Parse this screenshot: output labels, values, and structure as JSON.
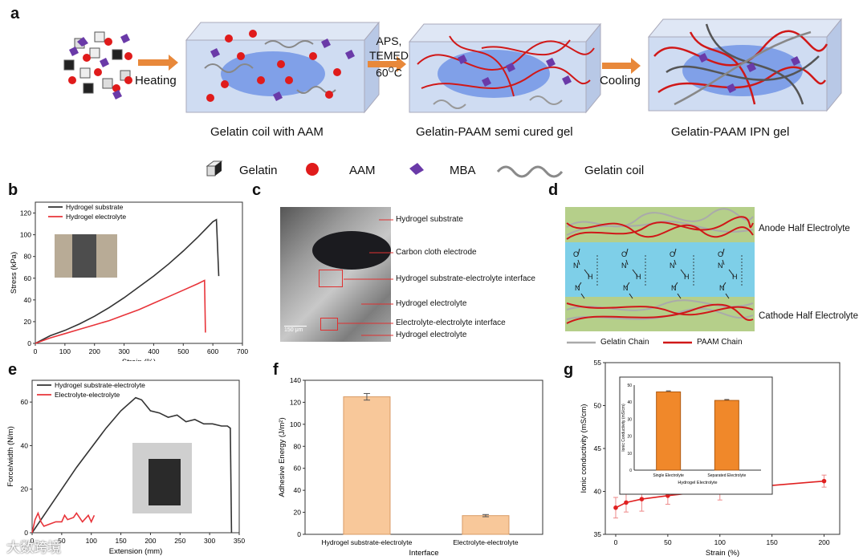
{
  "panel_a": {
    "letter": "a",
    "step1": "Heating",
    "step2_line1": "APS,",
    "step2_line2": "TEMED",
    "step2_line3": "60",
    "step2_sup": "O",
    "step2_unit": "C",
    "step3": "Cooling",
    "caption1": "Gelatin coil with AAM",
    "caption2": "Gelatin-PAAM semi cured gel",
    "caption3": "Gelatin-PAAM IPN gel",
    "legend": [
      "Gelatin",
      "AAM",
      "MBA",
      "Gelatin coil"
    ],
    "colors": {
      "arrow": "#e8883a",
      "aam": "#e01b1b",
      "mba": "#6a3aa8",
      "box": "#c9d6ee",
      "chain_red": "#d01818",
      "chain_gray": "#8a8a8a"
    }
  },
  "panel_c": {
    "letter": "c",
    "labels": [
      "Hydrogel substrate",
      "Carbon cloth electrode",
      "Hydrogel substrate-electrolyte interface",
      "Hydrogel electrolyte",
      "Electrolyte-electrolyte interface",
      "Hydrogel electrolyte"
    ],
    "scalebar": "150 μm"
  },
  "panel_d": {
    "letter": "d",
    "top_label": "Anode Half Electrolyte",
    "bottom_label": "Cathode Half Electrolyte",
    "legend": [
      "Gelatin Chain",
      "PAAM Chain"
    ],
    "colors": {
      "outer": "#b5cf8a",
      "middle": "#7ecfe8"
    }
  },
  "watermark": "大数跨境",
  "chart_data": [
    {
      "panel": "b",
      "type": "line",
      "title": "",
      "xlabel": "Strain (%)",
      "ylabel": "Stress (kPa)",
      "xlim": [
        0,
        700
      ],
      "ylim": [
        0,
        130
      ],
      "xticks": [
        "0",
        "100",
        "200",
        "300",
        "400",
        "500",
        "600",
        "700"
      ],
      "yticks": [
        "0",
        "20",
        "40",
        "60",
        "80",
        "100",
        "120"
      ],
      "series": [
        {
          "name": "Hydrogel substrate",
          "color": "#333333",
          "x": [
            0,
            50,
            100,
            150,
            200,
            250,
            300,
            350,
            400,
            450,
            500,
            550,
            600,
            612,
            620
          ],
          "y": [
            0,
            7,
            12,
            18,
            25,
            33,
            42,
            52,
            62,
            73,
            85,
            98,
            112,
            114,
            62
          ]
        },
        {
          "name": "Hydrogel electrolyte",
          "color": "#e8343a",
          "x": [
            0,
            50,
            100,
            150,
            200,
            250,
            300,
            350,
            400,
            450,
            500,
            550,
            572,
            575
          ],
          "y": [
            0,
            5,
            9,
            13,
            17,
            21,
            26,
            31,
            37,
            43,
            49,
            55,
            58,
            10
          ]
        }
      ]
    },
    {
      "panel": "e",
      "type": "line",
      "title": "",
      "xlabel": "Extension (mm)",
      "ylabel": "Force/width (N/m)",
      "xlim": [
        0,
        350
      ],
      "ylim": [
        0,
        70
      ],
      "xticks": [
        "0",
        "50",
        "100",
        "150",
        "200",
        "250",
        "300",
        "350"
      ],
      "yticks": [
        "0",
        "20",
        "40",
        "60"
      ],
      "series": [
        {
          "name": "Hydrogel substrate-electrolyte",
          "color": "#333333",
          "x": [
            0,
            25,
            50,
            75,
            100,
            125,
            150,
            175,
            185,
            200,
            215,
            230,
            245,
            260,
            275,
            290,
            305,
            320,
            330,
            335,
            337
          ],
          "y": [
            0,
            10,
            20,
            30,
            39,
            48,
            56,
            62,
            61,
            56,
            55,
            53,
            54,
            51,
            52,
            50,
            50,
            49,
            49,
            48,
            0
          ]
        },
        {
          "name": "Electrolyte-electrolyte",
          "color": "#e8343a",
          "x": [
            0,
            5,
            10,
            15,
            20,
            30,
            40,
            50,
            55,
            60,
            70,
            75,
            85,
            95,
            100,
            105
          ],
          "y": [
            0,
            6,
            9,
            5,
            3,
            4,
            5,
            5,
            8,
            6,
            7,
            9,
            5,
            8,
            5,
            8
          ]
        }
      ]
    },
    {
      "panel": "f",
      "type": "bar",
      "title": "",
      "xlabel": "Interface",
      "ylabel": "Adhesive Energy (J/m²)",
      "categories": [
        "Hydrogel substrate-electrolyte",
        "Electrolyte-electrolyte"
      ],
      "values": [
        125,
        17
      ],
      "errors": [
        3,
        1
      ],
      "ylim": [
        0,
        140
      ],
      "yticks": [
        "0",
        "20",
        "40",
        "60",
        "80",
        "100",
        "120",
        "140"
      ],
      "color": "#f8c89a"
    },
    {
      "panel": "g",
      "type": "line",
      "title": "",
      "xlabel": "Strain (%)",
      "ylabel": "Ionic conductivity (mS/cm)",
      "xlim": [
        -10,
        215
      ],
      "ylim": [
        35,
        55
      ],
      "xticks": [
        "0",
        "50",
        "100",
        "150",
        "200"
      ],
      "yticks": [
        "35",
        "40",
        "45",
        "50",
        "55"
      ],
      "series": [
        {
          "name": "Ionic conductivity",
          "color": "#e02020",
          "x": [
            0,
            10,
            25,
            50,
            100,
            200
          ],
          "y": [
            38.1,
            38.7,
            39.1,
            39.5,
            40.2,
            41.2
          ],
          "errors": [
            1.2,
            1.1,
            1.4,
            1.0,
            1.2,
            0.7
          ]
        }
      ]
    },
    {
      "panel": "g-inset",
      "type": "bar",
      "title": "",
      "xlabel": "Hydrogel Electrolyte",
      "ylabel": "Ionic Conductivity (mS/cm)",
      "categories": [
        "Single Electrolyte",
        "Separated Electrolyte"
      ],
      "values": [
        46,
        41
      ],
      "errors": [
        0.6,
        0.5
      ],
      "ylim": [
        0,
        50
      ],
      "yticks": [
        "0",
        "10",
        "20",
        "30",
        "40",
        "50"
      ],
      "color": "#f0882a"
    }
  ]
}
